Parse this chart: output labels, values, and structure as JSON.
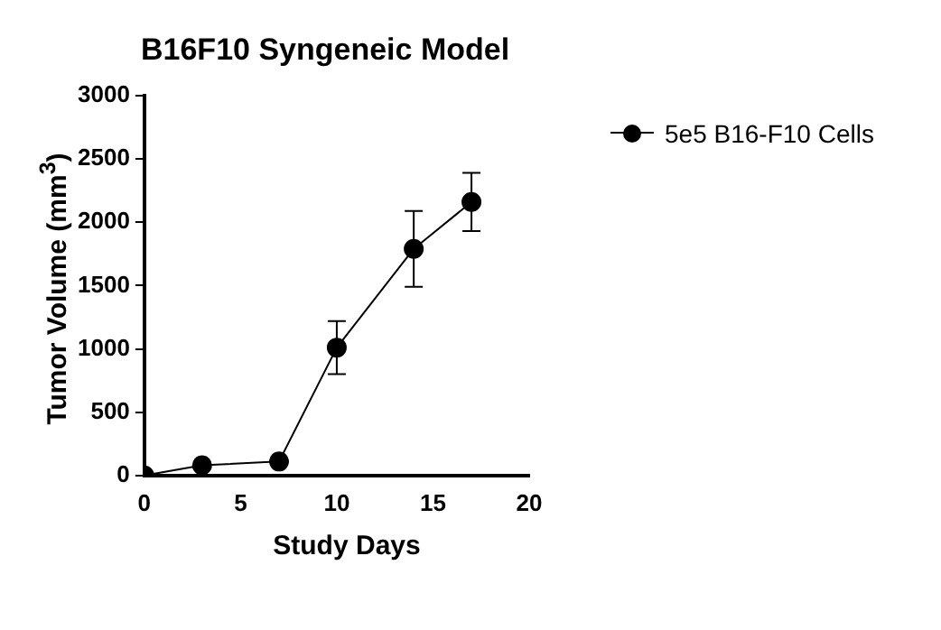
{
  "chart_data": {
    "type": "line",
    "title": "B16F10 Syngeneic Model",
    "xlabel": "Study Days",
    "ylabel": "Tumor Volume (mm$^{3}$)",
    "x": [
      0,
      3,
      7,
      10,
      14,
      17
    ],
    "series": [
      {
        "name": "5e5 B16-F10 Cells",
        "color": "#000000",
        "values": [
          0,
          80,
          110,
          1010,
          1790,
          2160
        ],
        "errors": [
          null,
          null,
          null,
          210,
          300,
          230
        ]
      }
    ],
    "xlim": [
      0,
      20
    ],
    "xticks": [
      0,
      5,
      10,
      15,
      20
    ],
    "ylim": [
      0,
      3000
    ],
    "yticks": [
      0,
      500,
      1000,
      1500,
      2000,
      2500,
      3000
    ],
    "grid": false,
    "legend": "top right",
    "marker": "circle",
    "line_style": "solid"
  }
}
